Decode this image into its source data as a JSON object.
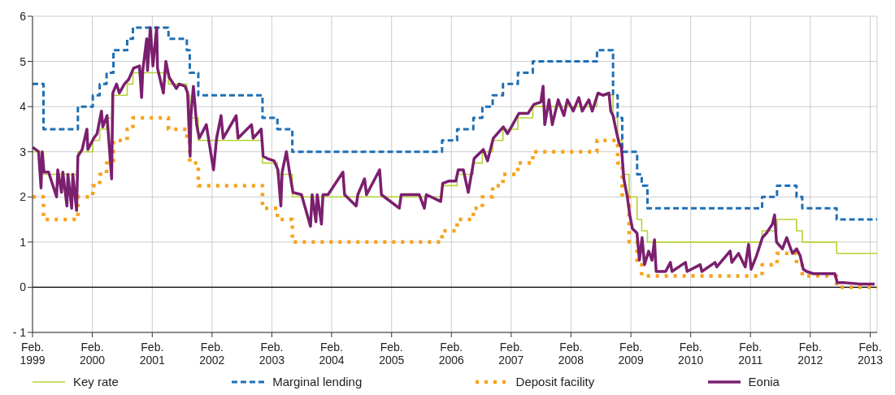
{
  "chart_data": {
    "type": "step",
    "xlim": [
      "1999-02-01",
      "2013-03-15"
    ],
    "xticks": [
      {
        "value": "1999-02-01",
        "label": "Feb. 1999"
      },
      {
        "value": "2000-02-01",
        "label": "Feb. 2000"
      },
      {
        "value": "2001-02-01",
        "label": "Feb. 2001"
      },
      {
        "value": "2002-02-01",
        "label": "Feb. 2002"
      },
      {
        "value": "2003-02-01",
        "label": "Feb. 2003"
      },
      {
        "value": "2004-02-01",
        "label": "Feb. 2004"
      },
      {
        "value": "2005-02-01",
        "label": "Feb. 2005"
      },
      {
        "value": "2006-02-01",
        "label": "Feb. 2006"
      },
      {
        "value": "2007-02-01",
        "label": "Feb. 2007"
      },
      {
        "value": "2008-02-01",
        "label": "Feb. 2008"
      },
      {
        "value": "2009-02-01",
        "label": "Feb. 2009"
      },
      {
        "value": "2010-02-01",
        "label": "Feb. 2010"
      },
      {
        "value": "2011-02-01",
        "label": "Feb. 2011"
      },
      {
        "value": "2012-02-01",
        "label": "Feb. 2012"
      },
      {
        "value": "2013-02-01",
        "label": "Feb. 2013"
      }
    ],
    "ylim": [
      -1,
      6
    ],
    "yticks": [
      {
        "value": -1,
        "label": "- 1"
      },
      0,
      1,
      2,
      3,
      4,
      5,
      6
    ],
    "grid": true,
    "legend": "bottom",
    "ref_lines": [
      {
        "axis": "y",
        "value": 0,
        "color": "#000000"
      }
    ],
    "series": [
      {
        "name": "Key rate",
        "color": "#b5d334",
        "line_style": "solid",
        "x": [
          "1999-02-01",
          "1999-04-09",
          "1999-11-05",
          "2000-02-04",
          "2000-03-17",
          "2000-04-28",
          "2000-06-09",
          "2000-09-01",
          "2000-10-06",
          "2001-05-11",
          "2001-08-31",
          "2001-09-18",
          "2001-11-09",
          "2002-12-06",
          "2003-03-07",
          "2003-06-06",
          "2005-12-06",
          "2006-03-08",
          "2006-06-15",
          "2006-08-09",
          "2006-10-11",
          "2006-12-13",
          "2007-03-14",
          "2007-06-13",
          "2008-07-09",
          "2008-10-15",
          "2008-11-12",
          "2008-12-10",
          "2009-01-21",
          "2009-03-11",
          "2009-04-08",
          "2009-05-13",
          "2011-04-13",
          "2011-07-13",
          "2011-11-09",
          "2011-12-14",
          "2012-07-11",
          "2013-03-15"
        ],
        "values": [
          3.0,
          2.5,
          3.0,
          3.25,
          3.5,
          3.75,
          4.25,
          4.5,
          4.75,
          4.5,
          4.25,
          3.75,
          3.25,
          2.75,
          2.5,
          2.0,
          2.25,
          2.5,
          2.75,
          3.0,
          3.25,
          3.5,
          3.75,
          4.0,
          4.25,
          3.75,
          3.25,
          2.5,
          2.0,
          1.5,
          1.25,
          1.0,
          1.25,
          1.5,
          1.25,
          1.0,
          0.75,
          0.75
        ]
      },
      {
        "name": "Marginal lending",
        "color": "#1f6fb4",
        "line_style": "dashed",
        "x": [
          "1999-02-01",
          "1999-04-09",
          "1999-11-05",
          "2000-02-04",
          "2000-03-17",
          "2000-04-28",
          "2000-06-09",
          "2000-09-01",
          "2000-10-06",
          "2001-05-11",
          "2001-08-31",
          "2001-09-18",
          "2001-11-09",
          "2002-12-06",
          "2003-03-07",
          "2003-06-06",
          "2005-12-06",
          "2006-03-08",
          "2006-06-15",
          "2006-08-09",
          "2006-10-11",
          "2006-12-13",
          "2007-03-14",
          "2007-06-13",
          "2008-07-09",
          "2008-10-15",
          "2008-11-12",
          "2008-12-10",
          "2009-03-11",
          "2009-04-08",
          "2009-05-13",
          "2011-04-13",
          "2011-07-13",
          "2011-11-09",
          "2011-12-14",
          "2012-07-11",
          "2013-03-15"
        ],
        "values": [
          4.5,
          3.5,
          4.0,
          4.25,
          4.5,
          4.75,
          5.25,
          5.5,
          5.75,
          5.5,
          5.25,
          4.75,
          4.25,
          3.75,
          3.5,
          3.0,
          3.25,
          3.5,
          3.75,
          4.0,
          4.25,
          4.5,
          4.75,
          5.0,
          5.25,
          4.25,
          3.75,
          3.0,
          2.5,
          2.25,
          1.75,
          2.0,
          2.25,
          2.0,
          1.75,
          1.5,
          1.5
        ]
      },
      {
        "name": "Deposit facility",
        "color": "#f7a21b",
        "line_style": "dotted",
        "x": [
          "1999-02-01",
          "1999-04-09",
          "1999-11-05",
          "2000-02-04",
          "2000-03-17",
          "2000-04-28",
          "2000-06-09",
          "2000-09-01",
          "2000-10-06",
          "2001-05-11",
          "2001-08-31",
          "2001-09-18",
          "2001-11-09",
          "2002-12-06",
          "2003-03-07",
          "2003-06-06",
          "2005-12-06",
          "2006-03-08",
          "2006-06-15",
          "2006-08-09",
          "2006-10-11",
          "2006-12-13",
          "2007-03-14",
          "2007-06-13",
          "2008-07-09",
          "2008-10-15",
          "2008-11-12",
          "2008-12-10",
          "2009-01-21",
          "2009-03-11",
          "2009-04-08",
          "2011-04-13",
          "2011-07-13",
          "2011-11-09",
          "2011-12-14",
          "2012-07-11",
          "2013-03-15"
        ],
        "values": [
          2.0,
          1.5,
          2.0,
          2.25,
          2.5,
          2.75,
          3.25,
          3.5,
          3.75,
          3.5,
          3.25,
          2.75,
          2.25,
          1.75,
          1.5,
          1.0,
          1.25,
          1.5,
          1.75,
          2.0,
          2.25,
          2.5,
          2.75,
          3.0,
          3.25,
          3.25,
          2.75,
          2.0,
          1.0,
          0.5,
          0.25,
          0.5,
          0.75,
          0.5,
          0.25,
          0.0,
          0.0
        ]
      },
      {
        "name": "Eonia",
        "type": "line",
        "color": "#7b1f6f",
        "line_style": "solid",
        "x": [
          "1999-02-01",
          "1999-02-20",
          "1999-03-10",
          "1999-03-25",
          "1999-04-01",
          "1999-04-12",
          "1999-05-10",
          "1999-06-28",
          "1999-07-05",
          "1999-07-28",
          "1999-08-05",
          "1999-08-30",
          "1999-09-05",
          "1999-09-28",
          "1999-10-05",
          "1999-10-28",
          "1999-11-05",
          "1999-12-01",
          "1999-12-30",
          "2000-01-05",
          "2000-02-10",
          "2000-03-01",
          "2000-03-28",
          "2000-04-05",
          "2000-05-01",
          "2000-05-29",
          "2000-06-05",
          "2000-06-28",
          "2000-07-15",
          "2000-08-15",
          "2000-09-10",
          "2000-10-10",
          "2000-11-15",
          "2000-11-28",
          "2000-12-05",
          "2000-12-29",
          "2001-01-03",
          "2001-01-20",
          "2001-02-05",
          "2001-02-28",
          "2001-03-05",
          "2001-04-10",
          "2001-04-25",
          "2001-05-15",
          "2001-06-28",
          "2001-07-15",
          "2001-08-20",
          "2001-09-05",
          "2001-09-20",
          "2001-09-25",
          "2001-10-10",
          "2001-10-30",
          "2001-11-15",
          "2001-12-28",
          "2002-01-10",
          "2002-02-10",
          "2002-03-01",
          "2002-03-28",
          "2002-04-10",
          "2002-06-28",
          "2002-07-10",
          "2002-09-30",
          "2002-10-10",
          "2002-11-28",
          "2002-12-10",
          "2003-01-05",
          "2003-02-15",
          "2003-03-10",
          "2003-03-28",
          "2003-04-05",
          "2003-05-01",
          "2003-05-20",
          "2003-06-10",
          "2003-08-01",
          "2003-09-25",
          "2003-10-05",
          "2003-10-28",
          "2003-11-05",
          "2003-12-01",
          "2003-12-10",
          "2004-01-10",
          "2004-04-10",
          "2004-04-20",
          "2004-06-30",
          "2004-07-10",
          "2004-08-20",
          "2004-09-01",
          "2004-11-20",
          "2004-12-01",
          "2005-03-20",
          "2005-04-01",
          "2005-07-20",
          "2005-08-20",
          "2005-09-01",
          "2005-11-28",
          "2005-12-10",
          "2006-01-15",
          "2006-02-28",
          "2006-03-15",
          "2006-04-15",
          "2006-05-15",
          "2006-06-20",
          "2006-08-15",
          "2006-09-10",
          "2006-10-15",
          "2006-12-15",
          "2007-01-10",
          "2007-02-10",
          "2007-03-20",
          "2007-05-15",
          "2007-06-20",
          "2007-08-01",
          "2007-08-15",
          "2007-08-25",
          "2007-09-20",
          "2007-10-10",
          "2007-11-15",
          "2007-12-20",
          "2008-01-10",
          "2008-02-15",
          "2008-03-20",
          "2008-04-10",
          "2008-05-20",
          "2008-06-10",
          "2008-07-15",
          "2008-08-15",
          "2008-09-20",
          "2008-10-01",
          "2008-10-15",
          "2008-11-01",
          "2008-11-20",
          "2008-12-05",
          "2008-12-20",
          "2009-01-10",
          "2009-01-25",
          "2009-02-10",
          "2009-03-10",
          "2009-03-25",
          "2009-04-10",
          "2009-04-25",
          "2009-05-20",
          "2009-06-10",
          "2009-06-25",
          "2009-07-05",
          "2009-09-01",
          "2009-09-30",
          "2009-10-10",
          "2009-12-31",
          "2010-01-10",
          "2010-03-31",
          "2010-04-10",
          "2010-06-30",
          "2010-07-10",
          "2010-09-30",
          "2010-10-10",
          "2010-11-20",
          "2010-12-31",
          "2011-01-20",
          "2011-02-05",
          "2011-03-10",
          "2011-04-15",
          "2011-05-10",
          "2011-06-15",
          "2011-06-28",
          "2011-07-10",
          "2011-08-15",
          "2011-09-10",
          "2011-10-15",
          "2011-11-10",
          "2011-12-01",
          "2011-12-20",
          "2012-01-10",
          "2012-02-20",
          "2012-04-20",
          "2012-06-30",
          "2012-07-15",
          "2012-09-01",
          "2012-12-01",
          "2013-01-15",
          "2013-02-28"
        ],
        "values": [
          3.1,
          3.05,
          3.0,
          2.2,
          3.0,
          2.55,
          2.55,
          2.0,
          2.6,
          2.1,
          2.55,
          1.8,
          2.5,
          1.75,
          2.5,
          1.7,
          2.9,
          3.05,
          3.5,
          3.05,
          3.3,
          3.4,
          3.9,
          3.55,
          3.8,
          2.4,
          4.3,
          4.5,
          4.3,
          4.5,
          4.6,
          4.85,
          4.9,
          4.2,
          4.8,
          5.5,
          4.8,
          5.75,
          4.9,
          5.75,
          4.85,
          4.3,
          5.0,
          4.65,
          4.4,
          4.5,
          4.45,
          4.3,
          2.9,
          3.8,
          4.45,
          3.6,
          3.3,
          3.6,
          3.3,
          2.6,
          3.3,
          3.8,
          3.3,
          3.8,
          3.3,
          3.6,
          3.3,
          3.5,
          2.9,
          2.85,
          2.8,
          2.6,
          1.8,
          2.55,
          3.0,
          2.55,
          2.1,
          2.05,
          1.35,
          2.05,
          1.45,
          2.05,
          1.4,
          2.05,
          2.05,
          2.55,
          2.05,
          1.8,
          2.05,
          2.4,
          2.05,
          2.6,
          2.05,
          1.75,
          2.05,
          2.05,
          1.75,
          2.05,
          1.9,
          2.3,
          2.35,
          2.35,
          2.6,
          2.6,
          2.1,
          2.85,
          3.05,
          2.8,
          3.3,
          3.55,
          3.4,
          3.6,
          3.85,
          3.85,
          4.05,
          4.1,
          4.45,
          3.6,
          4.15,
          3.6,
          4.15,
          3.8,
          4.15,
          3.9,
          4.2,
          3.9,
          4.15,
          3.9,
          4.3,
          4.25,
          4.3,
          3.9,
          3.8,
          3.5,
          3.2,
          3.1,
          2.4,
          2.0,
          1.6,
          1.3,
          1.2,
          0.6,
          1.1,
          0.5,
          0.8,
          0.6,
          1.05,
          0.35,
          0.35,
          0.55,
          0.35,
          0.55,
          0.35,
          0.5,
          0.35,
          0.55,
          0.45,
          0.8,
          0.55,
          0.75,
          0.45,
          0.95,
          0.4,
          0.7,
          1.1,
          1.2,
          1.4,
          1.6,
          1.0,
          0.85,
          1.1,
          0.75,
          0.85,
          0.7,
          0.4,
          0.35,
          0.3,
          0.3,
          0.3,
          0.1,
          0.1,
          0.07,
          0.07,
          0.07
        ]
      }
    ]
  }
}
